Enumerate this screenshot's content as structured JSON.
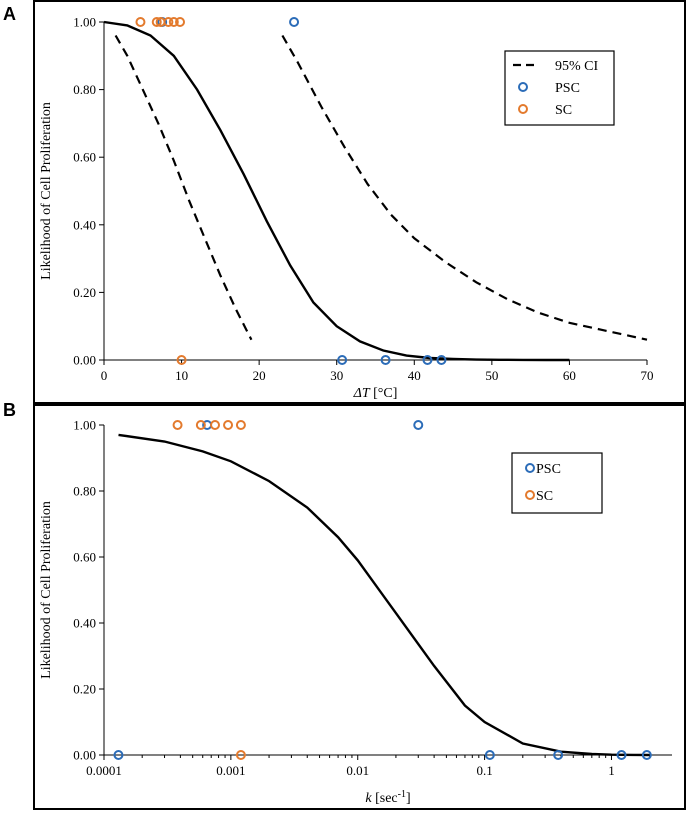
{
  "colors": {
    "psc": "#2b6cb8",
    "sc": "#e37a2d",
    "curve": "#000000",
    "frame": "#000000"
  },
  "chart_data": [
    {
      "panel": "A",
      "type": "scatter",
      "xscale": "linear",
      "xlabel_italic": "ΔT",
      "xlabel_rest": " [°C]",
      "ylabel": "Likelihood of Cell Proliferation",
      "xlim": [
        0,
        70
      ],
      "ylim": [
        0,
        1
      ],
      "xticks": [
        {
          "v": 0,
          "label": "0"
        },
        {
          "v": 10,
          "label": "10"
        },
        {
          "v": 20,
          "label": "20"
        },
        {
          "v": 30,
          "label": "30"
        },
        {
          "v": 40,
          "label": "40"
        },
        {
          "v": 50,
          "label": "50"
        },
        {
          "v": 60,
          "label": "60"
        },
        {
          "v": 70,
          "label": "70"
        }
      ],
      "yticks": [
        {
          "v": 0,
          "label": "0.00"
        },
        {
          "v": 0.2,
          "label": "0.20"
        },
        {
          "v": 0.4,
          "label": "0.40"
        },
        {
          "v": 0.6,
          "label": "0.60"
        },
        {
          "v": 0.8,
          "label": "0.80"
        },
        {
          "v": 1,
          "label": "1.00"
        }
      ],
      "grid": false,
      "legend_position": "top-right",
      "legend": [
        {
          "kind": "dash",
          "label": "95% CI"
        },
        {
          "kind": "psc",
          "label": "PSC"
        },
        {
          "kind": "sc",
          "label": "SC"
        }
      ],
      "fit": {
        "x": [
          0,
          3,
          6,
          9,
          12,
          15,
          18,
          21,
          24,
          27,
          30,
          33,
          36,
          39,
          42,
          45,
          48,
          51,
          54,
          57,
          60
        ],
        "y": [
          1.0,
          0.99,
          0.96,
          0.9,
          0.8,
          0.68,
          0.55,
          0.41,
          0.28,
          0.17,
          0.1,
          0.055,
          0.028,
          0.013,
          0.006,
          0.003,
          0.0013,
          0.0006,
          0.0003,
          0.0001,
          0.0
        ]
      },
      "ci_lower": {
        "x": [
          1.5,
          3,
          5,
          7,
          9,
          11,
          13,
          15,
          17,
          19
        ],
        "y": [
          0.96,
          0.9,
          0.8,
          0.7,
          0.59,
          0.47,
          0.36,
          0.25,
          0.15,
          0.06
        ]
      },
      "ci_upper": {
        "x": [
          23,
          25,
          28,
          31,
          34,
          37,
          40,
          44,
          48,
          52,
          56,
          60,
          64,
          68,
          70
        ],
        "y": [
          0.96,
          0.88,
          0.75,
          0.63,
          0.52,
          0.43,
          0.36,
          0.29,
          0.23,
          0.18,
          0.14,
          0.11,
          0.09,
          0.07,
          0.06
        ]
      },
      "psc": {
        "x": [
          7.5,
          24.5,
          30.7,
          36.3,
          41.7,
          43.5
        ],
        "y": [
          1,
          1,
          0,
          0,
          0,
          0
        ]
      },
      "sc": {
        "x": [
          4.7,
          6.8,
          7.3,
          8.3,
          9.0,
          9.8,
          10.0
        ],
        "y": [
          1,
          1,
          1,
          1,
          1,
          1,
          0
        ]
      }
    },
    {
      "panel": "B",
      "type": "scatter",
      "xscale": "log",
      "xlabel_italic": "k",
      "xlabel_rest": " [sec",
      "xlabel_sup": "-1",
      "xlabel_end": "]",
      "ylabel": "Likelihood of Cell Proliferation",
      "xlim": [
        0.0001,
        3
      ],
      "ylim": [
        0,
        1
      ],
      "xticks": [
        {
          "v": 0.0001,
          "label": "0.0001"
        },
        {
          "v": 0.001,
          "label": "0.001"
        },
        {
          "v": 0.01,
          "label": "0.01"
        },
        {
          "v": 0.1,
          "label": "0.1"
        },
        {
          "v": 1,
          "label": "1"
        }
      ],
      "yticks": [
        {
          "v": 0,
          "label": "0.00"
        },
        {
          "v": 0.2,
          "label": "0.20"
        },
        {
          "v": 0.4,
          "label": "0.40"
        },
        {
          "v": 0.6,
          "label": "0.60"
        },
        {
          "v": 0.8,
          "label": "0.80"
        },
        {
          "v": 1,
          "label": "1.00"
        }
      ],
      "grid": false,
      "legend_position": "top-right",
      "legend": [
        {
          "kind": "psc",
          "label": "PSC"
        },
        {
          "kind": "sc",
          "label": "SC"
        }
      ],
      "fit": {
        "x": [
          0.00013,
          0.0003,
          0.0006,
          0.001,
          0.002,
          0.004,
          0.007,
          0.01,
          0.02,
          0.04,
          0.07,
          0.1,
          0.2,
          0.4,
          0.7,
          1.0,
          1.5,
          2.0
        ],
        "y": [
          0.97,
          0.95,
          0.92,
          0.89,
          0.83,
          0.75,
          0.66,
          0.59,
          0.43,
          0.27,
          0.15,
          0.1,
          0.035,
          0.01,
          0.003,
          0.001,
          0.0003,
          0.0001
        ]
      },
      "psc": {
        "x": [
          0.00013,
          0.00065,
          0.03,
          0.11,
          0.38,
          1.2,
          1.9
        ],
        "y": [
          0,
          1,
          1,
          0,
          0,
          0,
          0
        ]
      },
      "sc": {
        "x": [
          0.00038,
          0.00058,
          0.00075,
          0.00095,
          0.0012,
          0.0012
        ],
        "y": [
          1,
          1,
          1,
          1,
          1,
          0
        ]
      }
    }
  ]
}
